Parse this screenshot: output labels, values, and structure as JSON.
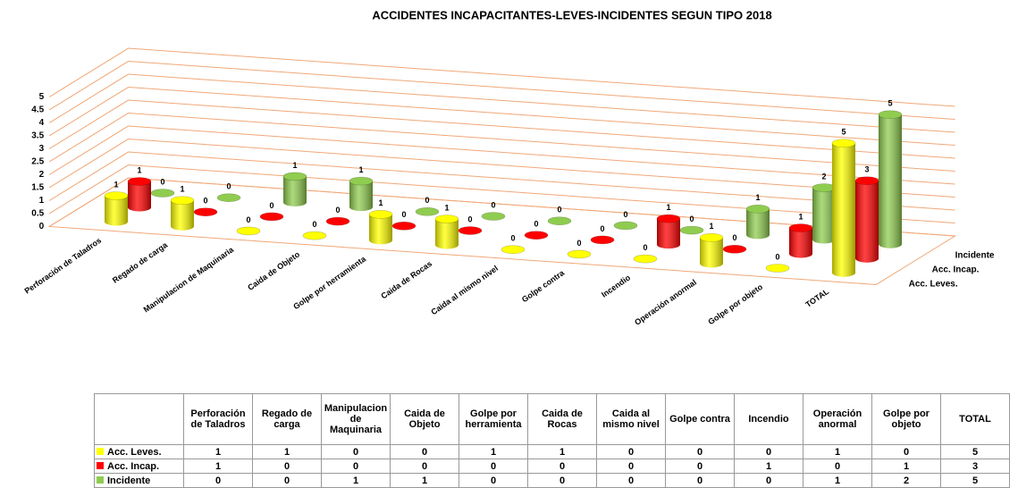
{
  "chart_data": {
    "type": "cylinder3d",
    "title": "ACCIDENTES INCAPACITANTES-LEVES-INCIDENTES  SEGUN TIPO 2018",
    "categories": [
      "Perforación de Taladros",
      "Regado de carga",
      "Manipulacion de Maquinaria",
      "Caida de Objeto",
      "Golpe por herramienta",
      "Caida de Rocas",
      "Caida al mismo nivel",
      "Golpe contra",
      "Incendio",
      "Operación anormal",
      "Golpe por objeto",
      "TOTAL"
    ],
    "series": [
      {
        "name": "Acc. Leves.",
        "color": "#ffff00",
        "values": [
          1,
          1,
          0,
          0,
          1,
          1,
          0,
          0,
          0,
          1,
          0,
          5
        ]
      },
      {
        "name": "Acc. Incap.",
        "color": "#ff0000",
        "values": [
          1,
          0,
          0,
          0,
          0,
          0,
          0,
          0,
          1,
          0,
          1,
          3
        ]
      },
      {
        "name": "Incidente",
        "color": "#8fcc4f",
        "values": [
          0,
          0,
          1,
          1,
          0,
          0,
          0,
          0,
          0,
          1,
          2,
          5
        ]
      }
    ],
    "ylim": [
      0,
      5
    ],
    "yticks": [
      0,
      0.5,
      1,
      1.5,
      2,
      2.5,
      3,
      3.5,
      4,
      4.5,
      5
    ],
    "grid": true,
    "data_table": true
  }
}
